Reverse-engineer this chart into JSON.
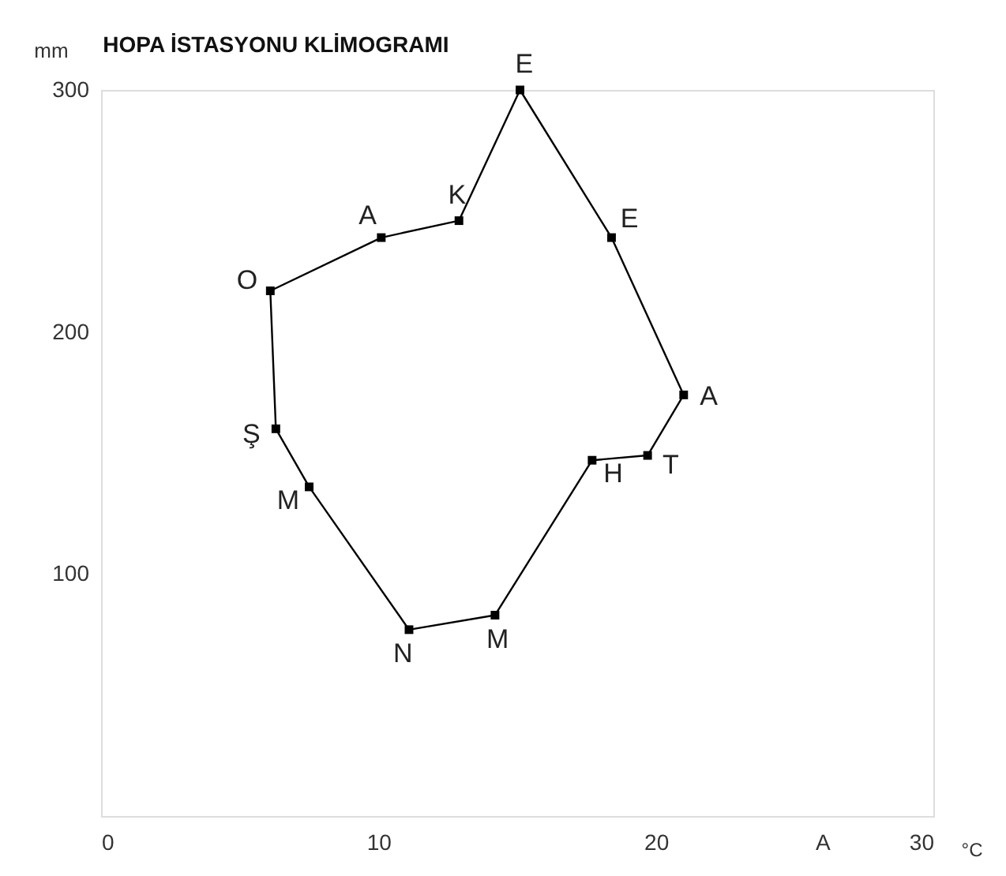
{
  "chart_data": {
    "type": "line",
    "title": "HOPA İSTASYONU KLİMOGRAMI",
    "xlabel": "°C",
    "ylabel": "mm",
    "x": [
      6.1,
      6.3,
      7.5,
      11.1,
      14.2,
      17.7,
      19.7,
      21.0,
      18.4,
      15.1,
      12.9,
      10.1
    ],
    "series": [
      {
        "color": "#000000",
        "values": [
          217,
          160,
          136,
          77,
          83,
          147,
          149,
          174,
          239,
          300,
          246,
          239
        ],
        "value_labels": [
          "O",
          "Ş",
          "M",
          "N",
          "M",
          "H",
          "T",
          "A",
          "E",
          "E",
          "K",
          "A"
        ]
      }
    ],
    "xlim": [
      0,
      30
    ],
    "xticks": [
      0,
      10,
      20,
      {
        "value": 26,
        "label": "A"
      },
      30
    ],
    "ylim": [
      0,
      300
    ],
    "yticks": [
      100,
      200,
      300
    ],
    "grid": false,
    "marker": "square",
    "line_style": "solid"
  }
}
